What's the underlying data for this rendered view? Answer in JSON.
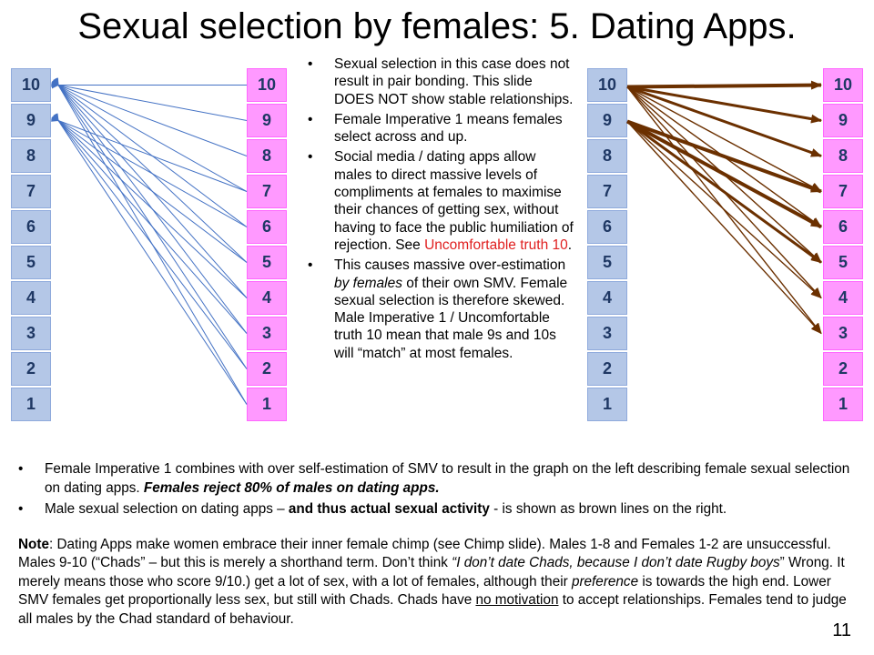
{
  "title": "Sexual selection by females: 5. Dating Apps.",
  "scale": [
    "10",
    "9",
    "8",
    "7",
    "6",
    "5",
    "4",
    "3",
    "2",
    "1"
  ],
  "colors": {
    "blue": "#b4c7e7",
    "pink": "#ff99ff",
    "blue_line": "#4472c4",
    "brown_line": "#6b3000",
    "red_text": "#e02020"
  },
  "left_diagram": {
    "connections": [
      {
        "from": 10,
        "to": 10
      },
      {
        "from": 10,
        "to": 9
      },
      {
        "from": 10,
        "to": 8
      },
      {
        "from": 10,
        "to": 7
      },
      {
        "from": 10,
        "to": 6
      },
      {
        "from": 10,
        "to": 5
      },
      {
        "from": 10,
        "to": 4
      },
      {
        "from": 10,
        "to": 3
      },
      {
        "from": 10,
        "to": 2
      },
      {
        "from": 10,
        "to": 1
      },
      {
        "from": 9,
        "to": 7
      },
      {
        "from": 9,
        "to": 6
      },
      {
        "from": 9,
        "to": 5
      },
      {
        "from": 9,
        "to": 4
      },
      {
        "from": 9,
        "to": 3
      },
      {
        "from": 9,
        "to": 2
      },
      {
        "from": 9,
        "to": 1
      }
    ]
  },
  "right_diagram": {
    "connections": [
      {
        "from": 10,
        "to": 10,
        "weight": "thick"
      },
      {
        "from": 10,
        "to": 9,
        "weight": "medium"
      },
      {
        "from": 10,
        "to": 8,
        "weight": "medium"
      },
      {
        "from": 10,
        "to": 7,
        "weight": "thin"
      },
      {
        "from": 10,
        "to": 6,
        "weight": "thin"
      },
      {
        "from": 10,
        "to": 5,
        "weight": "thin"
      },
      {
        "from": 10,
        "to": 4,
        "weight": "thin"
      },
      {
        "from": 10,
        "to": 3,
        "weight": "thin"
      },
      {
        "from": 9,
        "to": 7,
        "weight": "thick"
      },
      {
        "from": 9,
        "to": 6,
        "weight": "thick"
      },
      {
        "from": 9,
        "to": 5,
        "weight": "medium"
      },
      {
        "from": 9,
        "to": 4,
        "weight": "thin"
      },
      {
        "from": 9,
        "to": 3,
        "weight": "thin"
      }
    ]
  },
  "middle_bullets": {
    "b1": "Sexual selection in this case does not result in pair bonding. This slide DOES NOT show stable relationships.",
    "b2": "Female Imperative 1 means females select across and up.",
    "b3_pre": "Social media / dating apps allow males to direct massive levels of compliments at females to maximise their chances of getting sex, without having to face the public humiliation of rejection. See ",
    "b3_link": "Uncomfortable truth 10",
    "b3_post": ".",
    "b4_a": "This causes massive over-estimation ",
    "b4_em": "by females",
    "b4_b": " of their own SMV. Female sexual selection is therefore skewed. Male Imperative 1 / Uncomfortable truth 10 mean that male 9s and 10s will “match” at most females."
  },
  "bottom": {
    "bullet1_a": "Female Imperative 1 combines with over self-estimation of SMV to result in the graph on the left describing female sexual selection on dating apps. ",
    "bullet1_bi": "Females reject 80% of males on dating apps.",
    "bullet2_a": "Male sexual selection on dating apps – ",
    "bullet2_b": "and thus actual sexual activity",
    "bullet2_c": " - is shown as brown lines on the right.",
    "note_label": "Note",
    "note_1": ": Dating Apps make women embrace their inner female chimp (see Chimp slide). Males 1-8 and Females 1-2 are unsuccessful. Males 9-10 (“Chads” – but this is merely a shorthand term. Don’t think ",
    "note_i1": "“I don’t date Chads, because I don’t date Rugby boys",
    "note_2": "” Wrong. It merely means those who score 9/10.) get a lot of sex, with a lot of females, although their ",
    "note_i2": "preference",
    "note_3": " is towards the high end. Lower SMV females get proportionally less sex, but still with Chads. Chads have ",
    "note_u1": "no motivation",
    "note_4": " to accept relationships. Females tend to judge all males by the Chad standard of behaviour."
  },
  "page_number": "11"
}
